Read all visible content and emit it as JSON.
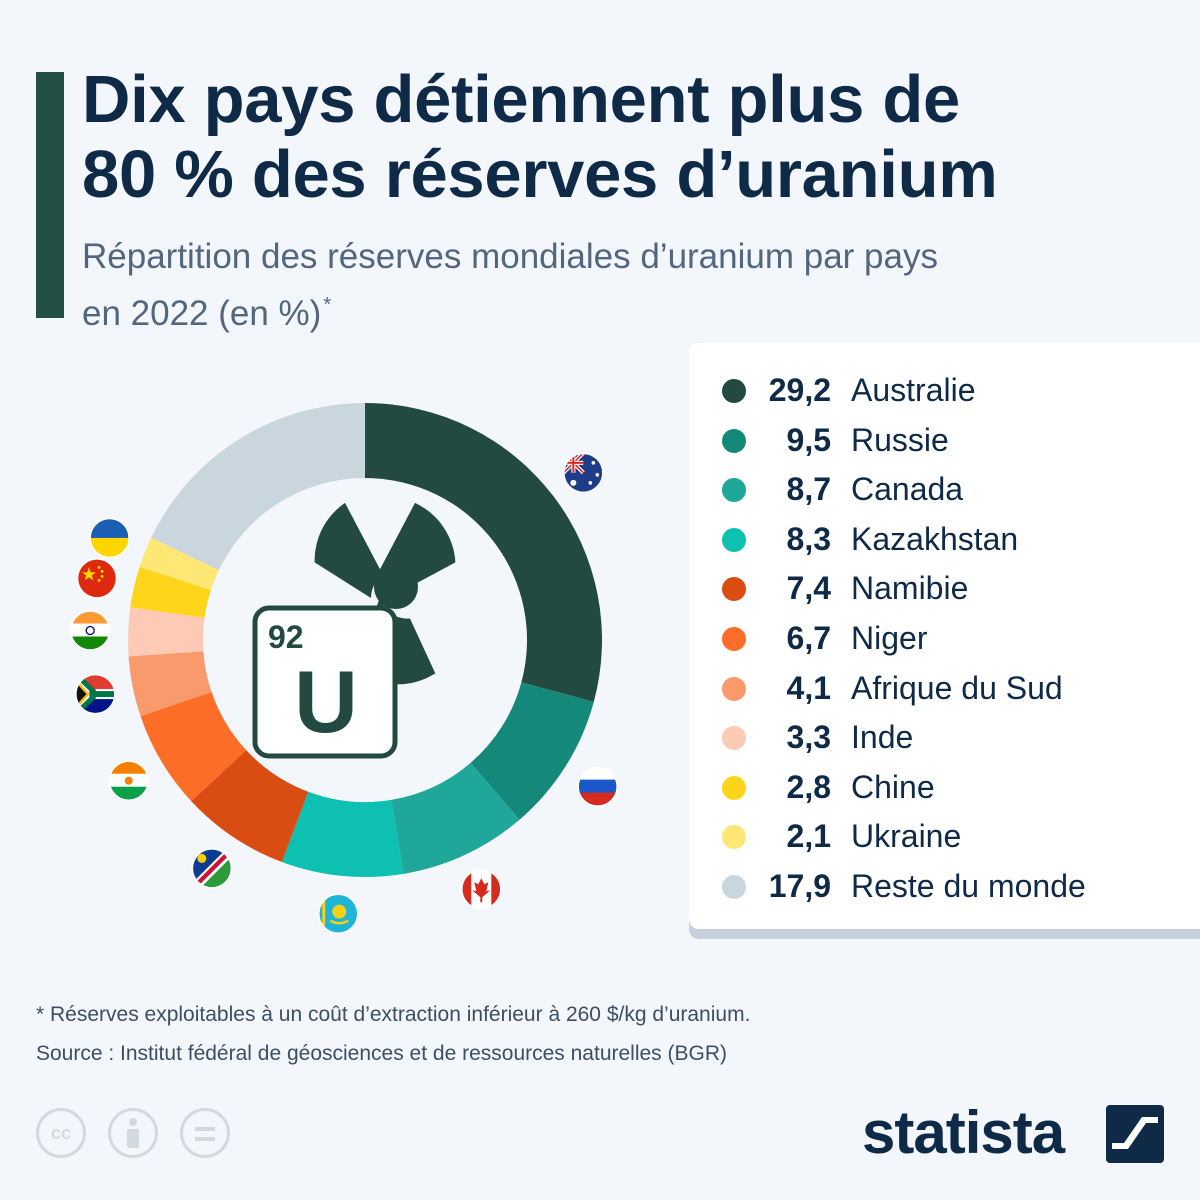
{
  "header": {
    "title_line1": "Dix pays détiennent plus de",
    "title_line2": "80 % des réserves d’uranium",
    "subtitle_line1": "Répartition des réserves mondiales d’uranium par pays",
    "subtitle_line2": "en 2022 (en %)",
    "subtitle_mark": "*"
  },
  "center_tile": {
    "atomic_number": "92",
    "symbol": "U"
  },
  "chart_data": {
    "type": "pie",
    "title": "Dix pays détiennent plus de 80 % des réserves d’uranium",
    "subtitle": "Répartition des réserves mondiales d’uranium par pays en 2022 (en %)",
    "unit": "%",
    "slices": [
      {
        "label": "Australie",
        "value": 29.2,
        "display": "29,2",
        "color": "#234a40",
        "flag": "australia-flag"
      },
      {
        "label": "Russie",
        "value": 9.5,
        "display": "9,5",
        "color": "#148979",
        "flag": "russia-flag"
      },
      {
        "label": "Canada",
        "value": 8.7,
        "display": "8,7",
        "color": "#1fa899",
        "flag": "canada-flag"
      },
      {
        "label": "Kazakhstan",
        "value": 8.3,
        "display": "8,3",
        "color": "#0dc0b1",
        "flag": "kazakhstan-flag"
      },
      {
        "label": "Namibie",
        "value": 7.4,
        "display": "7,4",
        "color": "#d94d13",
        "flag": "namibia-flag"
      },
      {
        "label": "Niger",
        "value": 6.7,
        "display": "6,7",
        "color": "#fc6d27",
        "flag": "niger-flag"
      },
      {
        "label": "Afrique du Sud",
        "value": 4.1,
        "display": "4,1",
        "color": "#f99a6c",
        "flag": "south-africa-flag"
      },
      {
        "label": "Inde",
        "value": 3.3,
        "display": "3,3",
        "color": "#fdcbb5",
        "flag": "india-flag"
      },
      {
        "label": "Chine",
        "value": 2.8,
        "display": "2,8",
        "color": "#ffd51c",
        "flag": "china-flag"
      },
      {
        "label": "Ukraine",
        "value": 2.1,
        "display": "2,1",
        "color": "#ffe776",
        "flag": "ukraine-flag"
      },
      {
        "label": "Reste du monde",
        "value": 17.9,
        "display": "17,9",
        "color": "#c9d6de",
        "flag": null
      }
    ]
  },
  "footer": {
    "footnote": "* Réserves exploitables à un coût d’extraction inférieur à 260 $/kg d’uranium.",
    "source": "Source : Institut fédéral de géosciences et de ressources naturelles (BGR)",
    "cc_text": "cc",
    "brand": "statista"
  },
  "colors": {
    "accent": "#234e43",
    "title": "#0e2a47",
    "background": "#f3f6fa",
    "radiation_symbol": "#234a40"
  }
}
